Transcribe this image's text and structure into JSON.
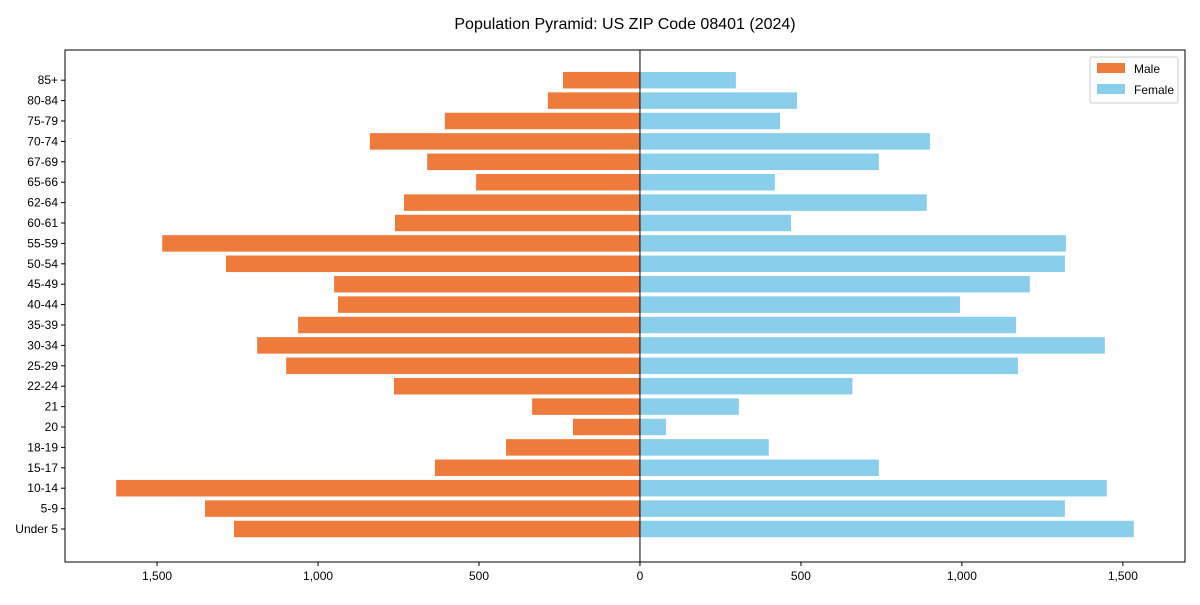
{
  "chart_data": {
    "type": "bar",
    "orientation": "horizontal-diverging",
    "title": "Population Pyramid: US ZIP Code 08401 (2024)",
    "xlabel": "",
    "ylabel": "",
    "xlim": [
      -1786,
      1693
    ],
    "xticks": [
      -1500,
      -1000,
      -500,
      0,
      500,
      1000,
      1500
    ],
    "xtick_labels": [
      "1,500",
      "1,000",
      "500",
      "0",
      "500",
      "1,000",
      "1,500"
    ],
    "categories": [
      "Under 5",
      "5-9",
      "10-14",
      "15-17",
      "18-19",
      "20",
      "21",
      "22-24",
      "25-29",
      "30-34",
      "35-39",
      "40-44",
      "45-49",
      "50-54",
      "55-59",
      "60-61",
      "62-64",
      "65-66",
      "67-69",
      "70-74",
      "75-79",
      "80-84",
      "85+"
    ],
    "series": [
      {
        "name": "Male",
        "color": "#ee7b3b",
        "values": [
          1261,
          1351,
          1627,
          637,
          416,
          208,
          335,
          764,
          1099,
          1189,
          1062,
          938,
          950,
          1286,
          1484,
          761,
          733,
          509,
          661,
          839,
          606,
          286,
          239
        ]
      },
      {
        "name": "Female",
        "color": "#89ceeb",
        "values": [
          1534,
          1320,
          1450,
          742,
          400,
          81,
          307,
          660,
          1174,
          1444,
          1168,
          994,
          1211,
          1320,
          1323,
          469,
          891,
          419,
          742,
          901,
          435,
          488,
          298
        ]
      }
    ],
    "legend": "top-right",
    "grid": false
  }
}
